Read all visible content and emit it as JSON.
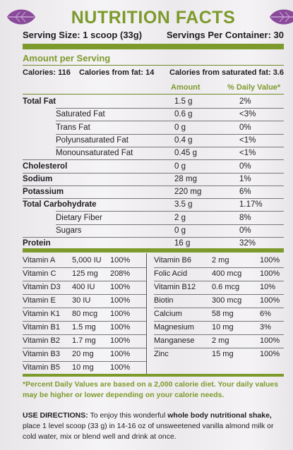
{
  "header": {
    "title": "NUTRITION FACTS",
    "serving_size": "Serving Size: 1 scoop (33g)",
    "servings_per_container": "Servings Per Container: 30",
    "leaf_color": "#8a4a9a",
    "accent_color": "#7d9a2c"
  },
  "amount_per_serving": "Amount per Serving",
  "calories": {
    "calories": "Calories: 116",
    "from_fat": "Calories from fat: 14",
    "from_saturated_fat": "Calories from saturated fat: 3.6"
  },
  "columns": {
    "amount": "Amount",
    "daily_value": "% Daily Value*"
  },
  "nutrients": [
    {
      "name": "Total Fat",
      "amount": "1.5 g",
      "dv": "2%"
    },
    {
      "name": "Saturated Fat",
      "amount": "0.6 g",
      "dv": "<3%"
    },
    {
      "name": "Trans Fat",
      "amount": "0 g",
      "dv": "0%"
    },
    {
      "name": "Polyunsaturated Fat",
      "amount": "0.4 g",
      "dv": "<1%"
    },
    {
      "name": "Monounsaturated Fat",
      "amount": "0.45 g",
      "dv": "<1%"
    },
    {
      "name": "Cholesterol",
      "amount": "0 g",
      "dv": "0%"
    },
    {
      "name": "Sodium",
      "amount": "28 mg",
      "dv": "1%"
    },
    {
      "name": "Potassium",
      "amount": "220 mg",
      "dv": "6%"
    },
    {
      "name": "Total Carbohydrate",
      "amount": "3.5 g",
      "dv": "1.17%"
    },
    {
      "name": "Dietary Fiber",
      "amount": "2 g",
      "dv": "8%"
    },
    {
      "name": "Sugars",
      "amount": "0 g",
      "dv": "0%"
    },
    {
      "name": "Protein",
      "amount": "16 g",
      "dv": "32%"
    }
  ],
  "vitamins_left": [
    {
      "name": "Vitamin A",
      "amount": "5,000 IU",
      "dv": "100%"
    },
    {
      "name": "Vitamin C",
      "amount": "125 mg",
      "dv": "208%"
    },
    {
      "name": "Vitamin D3",
      "amount": "400 IU",
      "dv": "100%"
    },
    {
      "name": "Vitamin E",
      "amount": "30 IU",
      "dv": "100%"
    },
    {
      "name": "Vitamin K1",
      "amount": "80 mcg",
      "dv": "100%"
    },
    {
      "name": "Vitamin B1",
      "amount": "1.5 mg",
      "dv": "100%"
    },
    {
      "name": "Vitamin B2",
      "amount": "1.7 mg",
      "dv": "100%"
    },
    {
      "name": "Vitamin B3",
      "amount": "20 mg",
      "dv": "100%"
    },
    {
      "name": "Vitamin B5",
      "amount": "10 mg",
      "dv": "100%"
    }
  ],
  "vitamins_right": [
    {
      "name": "Vitamin B6",
      "amount": "2 mg",
      "dv": "100%"
    },
    {
      "name": "Folic Acid",
      "amount": "400 mcg",
      "dv": "100%"
    },
    {
      "name": "Vitamin B12",
      "amount": "0.6 mcg",
      "dv": "10%"
    },
    {
      "name": "Biotin",
      "amount": "300 mcg",
      "dv": "100%"
    },
    {
      "name": "Calcium",
      "amount": "58 mg",
      "dv": "6%"
    },
    {
      "name": "Magnesium",
      "amount": "10 mg",
      "dv": "3%"
    },
    {
      "name": "Manganese",
      "amount": "2 mg",
      "dv": "100%"
    },
    {
      "name": "Zinc",
      "amount": "15 mg",
      "dv": "100%"
    }
  ],
  "footnote": "*Percent Daily Values are based on a 2,000 calorie diet. Your daily values may be higher or lower depending on your calorie needs.",
  "directions": {
    "label": "USE DIRECTIONS:",
    "text1": " To enjoy this wonderful ",
    "bold1": "whole body nutritional shake,",
    "text2": " place 1 level scoop (33 g) in 14-16 oz of unsweetened vanilla almond milk or cold water, mix or blend well and drink at once."
  }
}
